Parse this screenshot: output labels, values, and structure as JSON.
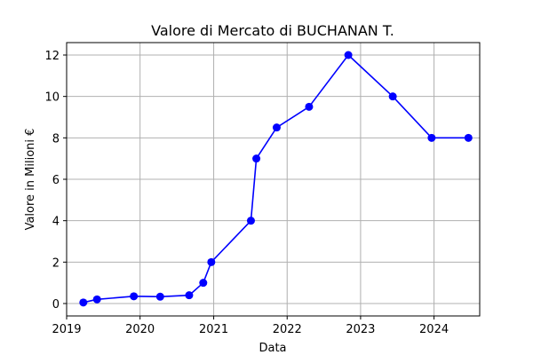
{
  "chart_data": {
    "type": "line",
    "title": "Valore di Mercato di BUCHANAN T.",
    "xlabel": "Data",
    "ylabel": "Valore in Milioni €",
    "x_ticks": [
      "2019",
      "2020",
      "2021",
      "2022",
      "2023",
      "2024"
    ],
    "y_ticks": [
      "0",
      "2",
      "4",
      "6",
      "8",
      "10",
      "12"
    ],
    "xlim": [
      "2019-01-01",
      "2024-08-15"
    ],
    "ylim": [
      -0.6,
      12.6
    ],
    "grid": true,
    "color": "#0000ff",
    "series": [
      {
        "x": [
          "2019-03-25",
          "2019-06-01",
          "2019-12-01",
          "2020-04-10",
          "2020-09-01",
          "2020-11-10",
          "2020-12-20",
          "2021-07-05",
          "2021-08-01",
          "2021-11-10",
          "2022-04-20",
          "2022-11-01",
          "2023-06-10",
          "2023-12-20",
          "2024-06-20"
        ],
        "y": [
          0.05,
          0.2,
          0.35,
          0.33,
          0.4,
          1.0,
          2.0,
          4.0,
          7.0,
          8.5,
          9.5,
          12.0,
          10.0,
          8.0,
          8.0
        ]
      }
    ]
  }
}
